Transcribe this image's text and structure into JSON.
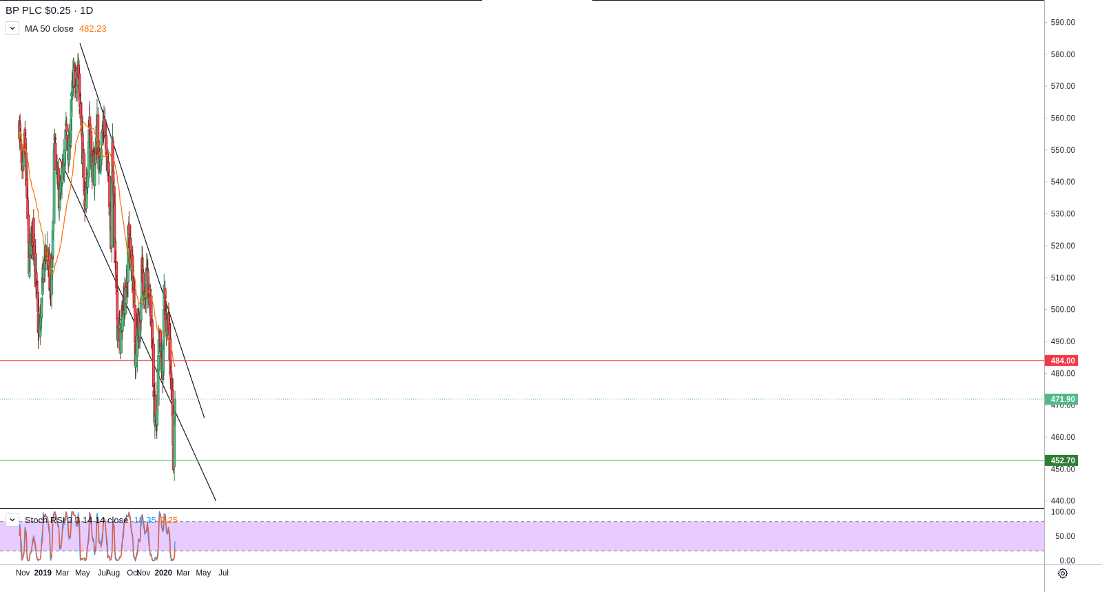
{
  "header": {
    "title": "BP PLC $0.25 · 1D",
    "ma_label": "MA 50 close",
    "ma_value": "482.23",
    "stoch_label": "Stoch RSI 3 3 14 14 close",
    "stoch_k": "18.35",
    "stoch_d": "7.25"
  },
  "colors": {
    "up": "#53b987",
    "down": "#eb4d5c",
    "up_wick": "#2e7d4f",
    "down_wick": "#8b1a1a",
    "ma": "#ff6d00",
    "k": "#2196f3",
    "d": "#ff5722",
    "support": "#4caf50",
    "resistance": "#f23645",
    "band": "#e8ccff"
  },
  "icons": {
    "collapse": "chevron-down-icon",
    "settings": "gear-icon"
  },
  "price_axis": {
    "ticks": [
      "590.00",
      "580.00",
      "570.00",
      "560.00",
      "550.00",
      "540.00",
      "530.00",
      "520.00",
      "510.00",
      "500.00",
      "490.00",
      "480.00",
      "470.00",
      "460.00",
      "450.00",
      "440.00"
    ],
    "levels": [
      {
        "label": "484.00",
        "value": 484.0,
        "color": "#f23645"
      },
      {
        "label": "471.90",
        "value": 471.9,
        "color": "#53b987"
      },
      {
        "label": "452.70",
        "value": 452.7,
        "color": "#2e7d32"
      }
    ]
  },
  "stoch_axis": {
    "ticks": [
      "100.00",
      "50.00",
      "0.00"
    ]
  },
  "time_axis": [
    {
      "label": "Nov",
      "bold": false
    },
    {
      "label": "2019",
      "bold": true
    },
    {
      "label": "Mar",
      "bold": false
    },
    {
      "label": "May",
      "bold": false
    },
    {
      "label": "Jul",
      "bold": false
    },
    {
      "label": "Aug",
      "bold": false
    },
    {
      "label": "Oct",
      "bold": false
    },
    {
      "label": "Nov",
      "bold": false
    },
    {
      "label": "2020",
      "bold": true
    },
    {
      "label": "Mar",
      "bold": false
    },
    {
      "label": "May",
      "bold": false
    },
    {
      "label": "Jul",
      "bold": false
    }
  ],
  "chart_data": {
    "type": "candlestick",
    "title": "BP PLC $0.25 · 1D",
    "ylim": [
      438,
      597
    ],
    "stoch_ylim": [
      -5,
      105
    ],
    "series_anchors": [
      [
        "2018-10-22",
        558
      ],
      [
        "2018-10-30",
        540
      ],
      [
        "2018-11-08",
        553
      ],
      [
        "2018-11-20",
        515
      ],
      [
        "2018-12-03",
        526
      ],
      [
        "2018-12-12",
        506
      ],
      [
        "2018-12-21",
        490
      ],
      [
        "2019-01-04",
        514
      ],
      [
        "2019-01-15",
        519
      ],
      [
        "2019-01-24",
        504
      ],
      [
        "2019-01-31",
        521
      ],
      [
        "2019-02-05",
        553
      ],
      [
        "2019-02-12",
        542
      ],
      [
        "2019-02-20",
        535
      ],
      [
        "2019-02-28",
        539
      ],
      [
        "2019-03-12",
        556
      ],
      [
        "2019-03-22",
        548
      ],
      [
        "2019-03-29",
        565
      ],
      [
        "2019-04-05",
        575
      ],
      [
        "2019-04-12",
        567
      ],
      [
        "2019-04-18",
        579
      ],
      [
        "2019-04-26",
        560
      ],
      [
        "2019-05-03",
        545
      ],
      [
        "2019-05-09",
        528
      ],
      [
        "2019-05-16",
        543
      ],
      [
        "2019-05-22",
        560
      ],
      [
        "2019-05-28",
        547
      ],
      [
        "2019-06-06",
        542
      ],
      [
        "2019-06-14",
        558
      ],
      [
        "2019-06-21",
        544
      ],
      [
        "2019-06-28",
        554
      ],
      [
        "2019-07-05",
        559
      ],
      [
        "2019-07-12",
        548
      ],
      [
        "2019-07-19",
        547
      ],
      [
        "2019-07-26",
        520
      ],
      [
        "2019-07-31",
        552
      ],
      [
        "2019-08-07",
        518
      ],
      [
        "2019-08-15",
        495
      ],
      [
        "2019-08-23",
        491
      ],
      [
        "2019-09-04",
        503
      ],
      [
        "2019-09-12",
        506
      ],
      [
        "2019-09-18",
        526
      ],
      [
        "2019-09-25",
        515
      ],
      [
        "2019-10-02",
        508
      ],
      [
        "2019-10-08",
        485
      ],
      [
        "2019-10-15",
        498
      ],
      [
        "2019-10-21",
        492
      ],
      [
        "2019-10-28",
        512
      ],
      [
        "2019-11-05",
        505
      ],
      [
        "2019-11-11",
        510
      ],
      [
        "2019-11-18",
        505
      ],
      [
        "2019-11-27",
        495
      ],
      [
        "2019-12-04",
        469
      ],
      [
        "2019-12-12",
        463
      ],
      [
        "2019-12-19",
        491
      ],
      [
        "2019-12-30",
        478
      ],
      [
        "2020-01-03",
        505
      ],
      [
        "2020-01-09",
        495
      ],
      [
        "2020-01-16",
        498
      ],
      [
        "2020-01-22",
        484
      ],
      [
        "2020-01-27",
        476
      ],
      [
        "2020-01-31",
        453
      ],
      [
        "2020-02-05",
        471.9
      ]
    ],
    "channel_lines": [
      {
        "from": [
          "2019-04-23",
          583.5
        ],
        "to": [
          "2020-05-04",
          466
        ]
      },
      {
        "from": [
          "2019-02-20",
          547.5
        ],
        "to": [
          "2020-06-08",
          440
        ]
      }
    ],
    "horizontal_levels": [
      484.0,
      471.9,
      452.7
    ],
    "indicators": [
      "MA 50 close",
      "Stoch RSI 3 3 14 14 close"
    ]
  }
}
